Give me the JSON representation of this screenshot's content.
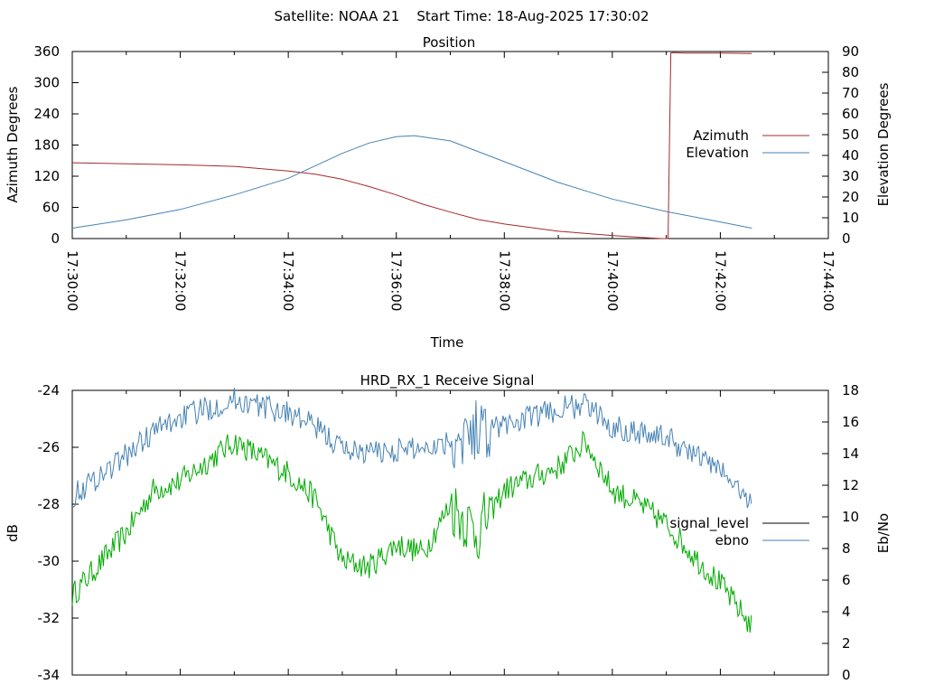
{
  "suptitle": "Satellite: NOAA 21    Start Time: 18-Aug-2025 17:30:02",
  "chart_data": [
    {
      "type": "line",
      "title": "Position",
      "xlabel": "Time",
      "ylabel": "Azimuth Degrees",
      "y2label": "Elevation Degrees",
      "xlim": [
        "17:30:00",
        "17:44:00"
      ],
      "ylim": [
        0,
        360
      ],
      "y2lim": [
        0,
        90
      ],
      "xticks": [
        "17:30:00",
        "17:32:00",
        "17:34:00",
        "17:36:00",
        "17:38:00",
        "17:40:00",
        "17:42:00",
        "17:44:00"
      ],
      "yticks": [
        "0",
        "60",
        "120",
        "180",
        "240",
        "300",
        "360"
      ],
      "y2ticks": [
        "0",
        "10",
        "20",
        "30",
        "40",
        "50",
        "60",
        "70",
        "80",
        "90"
      ],
      "legend_position": "right",
      "series": [
        {
          "name": "Azimuth",
          "axis": "left",
          "color": "#a52a2a",
          "x": [
            "17:30:00",
            "17:32:00",
            "17:33:00",
            "17:34:00",
            "17:34:30",
            "17:35:00",
            "17:35:30",
            "17:36:00",
            "17:36:30",
            "17:37:00",
            "17:37:30",
            "17:38:00",
            "17:39:00",
            "17:40:00",
            "17:40:43",
            "17:40:55",
            "17:41:02",
            "17:41:05",
            "17:41:08",
            "17:41:20",
            "17:42:00",
            "17:42:35"
          ],
          "values": [
            146,
            142,
            139,
            130,
            124,
            114,
            100,
            84,
            66,
            51,
            37,
            28,
            14,
            6,
            1,
            0,
            0,
            357,
            358,
            357,
            357,
            356
          ]
        },
        {
          "name": "Elevation",
          "axis": "right",
          "color": "#4682b4",
          "x": [
            "17:30:00",
            "17:31:00",
            "17:32:00",
            "17:33:00",
            "17:34:00",
            "17:35:00",
            "17:35:30",
            "17:36:00",
            "17:36:20",
            "17:37:00",
            "17:38:00",
            "17:39:00",
            "17:40:00",
            "17:41:00",
            "17:42:00",
            "17:42:35"
          ],
          "values": [
            5,
            9,
            14,
            21,
            29,
            41,
            46,
            49,
            49.5,
            47,
            37,
            27,
            19,
            13,
            8,
            5
          ]
        }
      ]
    },
    {
      "type": "line",
      "title": "HRD_RX_1 Receive Signal",
      "ylabel": "dB",
      "y2label": "Eb/No",
      "xlim": [
        "17:30:00",
        "17:44:00"
      ],
      "ylim": [
        -34,
        -24
      ],
      "y2lim": [
        0,
        18
      ],
      "yticks": [
        "-24",
        "-26",
        "-28",
        "-30",
        "-32",
        "-34"
      ],
      "y2ticks": [
        "0",
        "2",
        "4",
        "6",
        "8",
        "10",
        "12",
        "14",
        "16",
        "18"
      ],
      "legend_position": "right",
      "series": [
        {
          "name": "signal_level",
          "axis": "left",
          "color": "#00aa00",
          "x": [
            "17:30:00",
            "17:31:00",
            "17:31:30",
            "17:32:00",
            "17:33:00",
            "17:34:00",
            "17:34:30",
            "17:35:00",
            "17:35:30",
            "17:36:00",
            "17:36:30",
            "17:37:00",
            "17:37:30",
            "17:38:00",
            "17:39:00",
            "17:39:30",
            "17:40:00",
            "17:40:30",
            "17:41:00",
            "17:41:30",
            "17:42:00",
            "17:42:35"
          ],
          "values": [
            -31.2,
            -29.0,
            -27.5,
            -27.2,
            -25.8,
            -26.9,
            -27.8,
            -30.0,
            -30.2,
            -29.4,
            -29.7,
            -28.0,
            -29.0,
            -27.5,
            -26.7,
            -25.8,
            -27.5,
            -28.0,
            -28.7,
            -29.8,
            -30.8,
            -32.3
          ]
        },
        {
          "name": "ebno",
          "axis": "right",
          "color": "#4682b4",
          "x": [
            "17:30:00",
            "17:31:00",
            "17:31:30",
            "17:32:00",
            "17:33:00",
            "17:34:00",
            "17:34:30",
            "17:35:00",
            "17:35:30",
            "17:36:00",
            "17:36:30",
            "17:37:00",
            "17:37:30",
            "17:38:00",
            "17:39:00",
            "17:39:30",
            "17:40:00",
            "17:40:30",
            "17:41:00",
            "17:41:30",
            "17:42:00",
            "17:42:35"
          ],
          "values": [
            11.3,
            13.9,
            15.4,
            16.3,
            17.4,
            16.6,
            15.7,
            14.3,
            14.1,
            14.2,
            14.4,
            14.8,
            15.6,
            15.8,
            16.8,
            17.1,
            15.7,
            15.4,
            15.0,
            14.0,
            13.0,
            10.8
          ]
        }
      ]
    }
  ]
}
